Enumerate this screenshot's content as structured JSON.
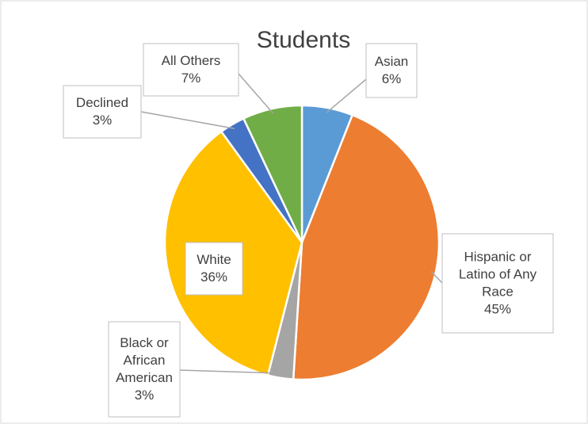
{
  "chart_data": {
    "type": "pie",
    "title": "Students",
    "slices": [
      {
        "name": "Asian",
        "value": 6,
        "label_lines": [
          "Asian",
          "6%"
        ],
        "color": "#5B9BD5"
      },
      {
        "name": "Hispanic or Latino of Any Race",
        "value": 45,
        "label_lines": [
          "Hispanic or",
          "Latino of Any",
          "Race",
          "45%"
        ],
        "color": "#ED7D31"
      },
      {
        "name": "Black or African American",
        "value": 3,
        "label_lines": [
          "Black or",
          "African",
          "American",
          "3%"
        ],
        "color": "#A5A5A5"
      },
      {
        "name": "White",
        "value": 36,
        "label_lines": [
          "White",
          "36%"
        ],
        "color": "#FFC000"
      },
      {
        "name": "Declined",
        "value": 3,
        "label_lines": [
          "Declined",
          "3%"
        ],
        "color": "#4472C4"
      },
      {
        "name": "All Others",
        "value": 7,
        "label_lines": [
          "All Others",
          "7%"
        ],
        "color": "#70AD47"
      }
    ],
    "legend": "none",
    "data_labels": "category and percentage"
  }
}
